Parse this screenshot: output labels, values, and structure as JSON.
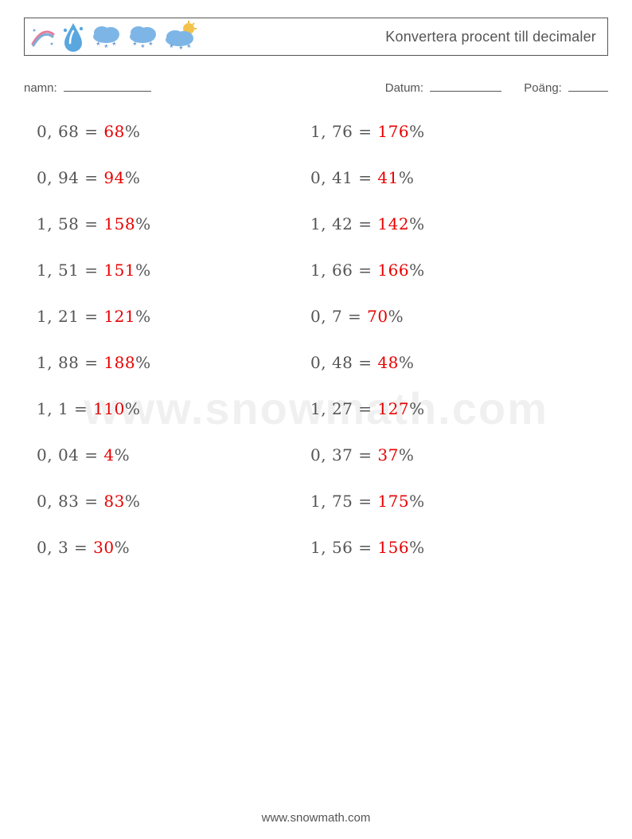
{
  "header": {
    "title": "Konvertera procent till decimaler"
  },
  "labels": {
    "name": "namn:",
    "date": "Datum:",
    "score": "Poäng:"
  },
  "styling": {
    "text_color": "#555555",
    "answer_color": "#e90000",
    "background": "#ffffff",
    "border_color": "#555555",
    "title_fontsize": 18,
    "label_fontsize": 15,
    "problem_fontsize": 20,
    "row_gap": 34,
    "columns": 2
  },
  "icons": {
    "rainbow_color1": "#e77b9c",
    "rainbow_color2": "#7aaed6",
    "drop_color": "#5aa7e0",
    "cloud_color": "#7db6e6",
    "snow_color": "#4f86c6",
    "sun_color": "#f3c24b"
  },
  "problems": {
    "left": [
      {
        "decimal": "0, 68",
        "answer": "68"
      },
      {
        "decimal": "0, 94",
        "answer": "94"
      },
      {
        "decimal": "1, 58",
        "answer": "158"
      },
      {
        "decimal": "1, 51",
        "answer": "151"
      },
      {
        "decimal": "1, 21",
        "answer": "121"
      },
      {
        "decimal": "1, 88",
        "answer": "188"
      },
      {
        "decimal": "1, 1",
        "answer": "110"
      },
      {
        "decimal": "0, 04",
        "answer": "4"
      },
      {
        "decimal": "0, 83",
        "answer": "83"
      },
      {
        "decimal": "0, 3",
        "answer": "30"
      }
    ],
    "right": [
      {
        "decimal": "1, 76",
        "answer": "176"
      },
      {
        "decimal": "0, 41",
        "answer": "41"
      },
      {
        "decimal": "1, 42",
        "answer": "142"
      },
      {
        "decimal": "1, 66",
        "answer": "166"
      },
      {
        "decimal": "0, 7",
        "answer": "70"
      },
      {
        "decimal": "0, 48",
        "answer": "48"
      },
      {
        "decimal": "1, 27",
        "answer": "127"
      },
      {
        "decimal": "0, 37",
        "answer": "37"
      },
      {
        "decimal": "1, 75",
        "answer": "175"
      },
      {
        "decimal": "1, 56",
        "answer": "156"
      }
    ]
  },
  "watermark": "www.snowmath.com",
  "footer": "www.snowmath.com"
}
